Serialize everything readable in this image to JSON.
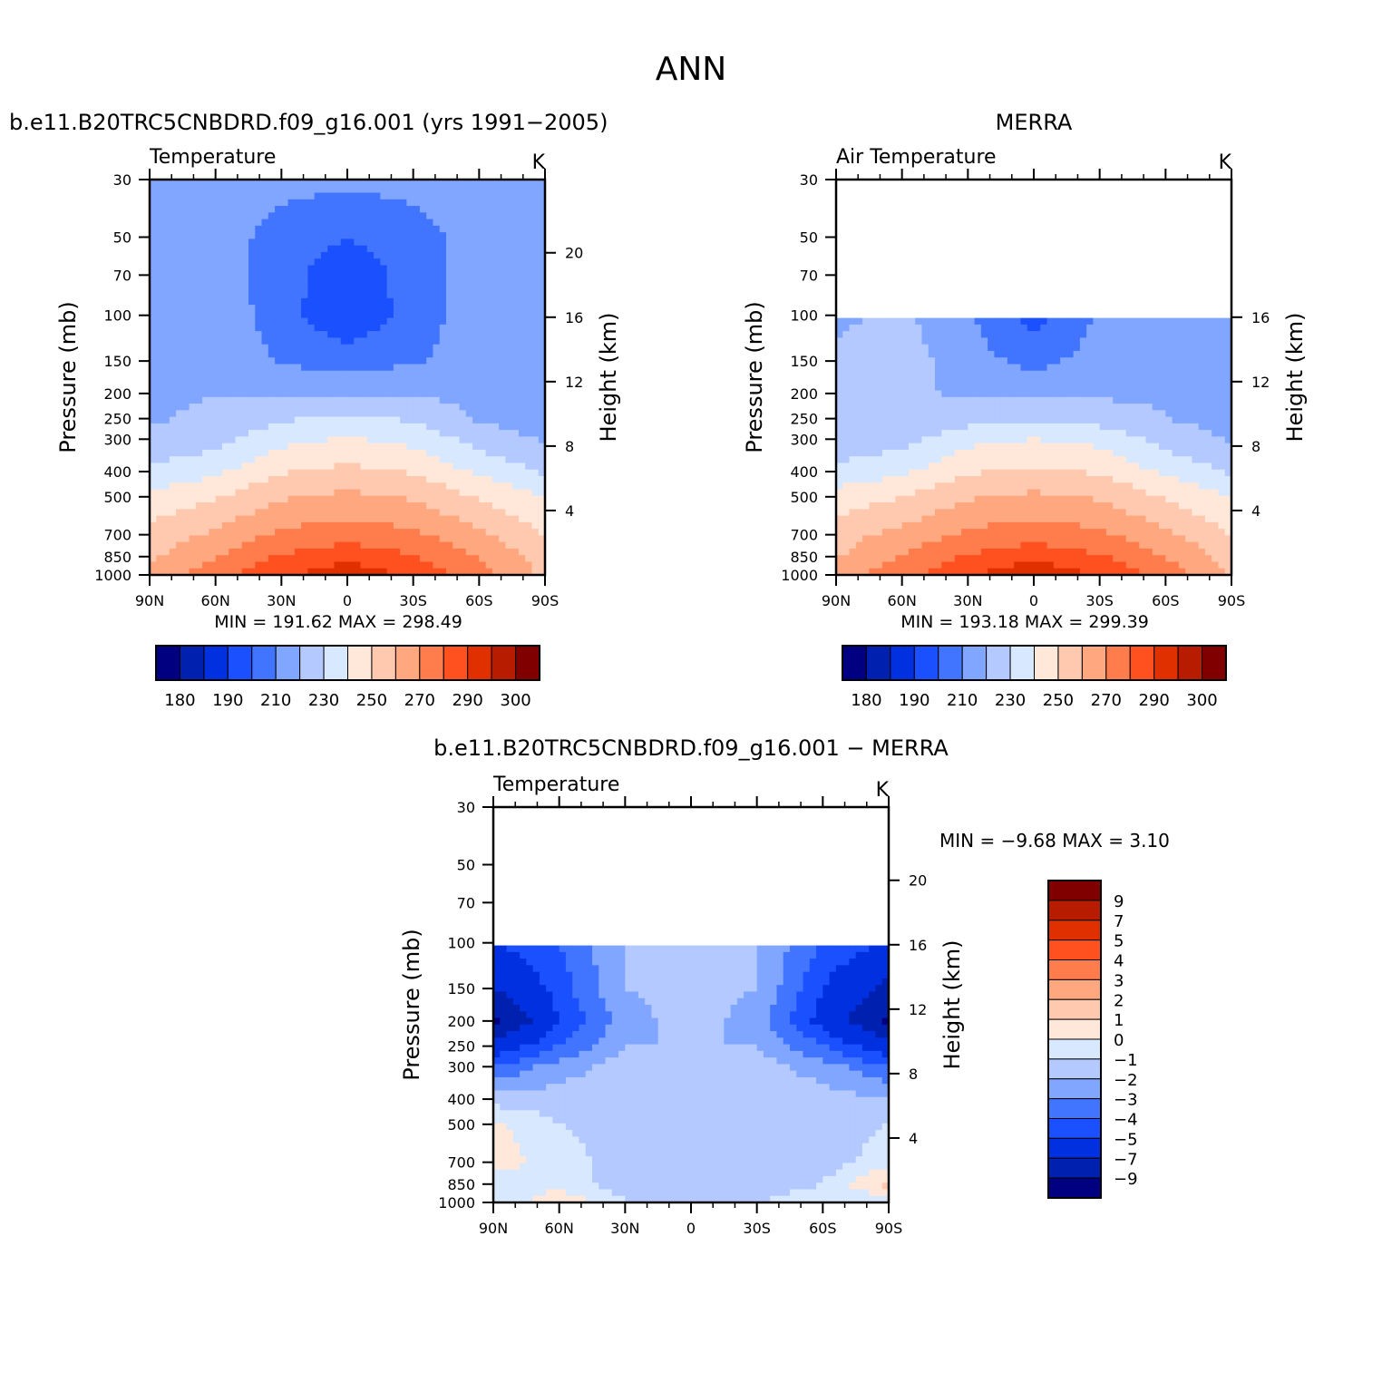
{
  "figure": {
    "title": "ANN",
    "case_name": "b.e11.B20TRC5CNBDRD.f09_g16.001 (yrs 1991−2005)",
    "obs_name": "MERRA",
    "diff_title": "b.e11.B20TRC5CNBDRD.f09_g16.001 − MERRA"
  },
  "chart_data": [
    {
      "type": "heatmap",
      "panel": "model",
      "title": "b.e11.B20TRC5CNBDRD.f09_g16.001 (yrs 1991−2005)",
      "subtitle": "Temperature",
      "units": "K",
      "xlabel": "",
      "ylabel": "Pressure (mb)",
      "ylabel_right": "Height (km)",
      "x_ticks": [
        "90N",
        "60N",
        "30N",
        "0",
        "30S",
        "60S",
        "90S"
      ],
      "y_ticks": [
        30,
        50,
        70,
        100,
        150,
        200,
        250,
        300,
        400,
        500,
        700,
        850,
        1000
      ],
      "y_scale": "log",
      "ylim": [
        1000,
        30
      ],
      "height_ticks_km": [
        4,
        8,
        12,
        16,
        20
      ],
      "stats": "MIN =  191.62   MAX =  298.49",
      "colorbar_labels": [
        "180",
        "190",
        "210",
        "230",
        "250",
        "270",
        "290",
        "300"
      ],
      "contour_levels": [
        180,
        190,
        200,
        210,
        220,
        230,
        240,
        250,
        260,
        270,
        280,
        290,
        300
      ],
      "lat_values": [
        90,
        60,
        30,
        0,
        -30,
        -60,
        -90
      ],
      "field": {
        "lat": [
          90,
          60,
          30,
          0,
          -30,
          -60,
          -90
        ],
        "pressure": [
          30,
          50,
          70,
          100,
          150,
          200,
          250,
          300,
          400,
          500,
          700,
          850,
          1000
        ],
        "values": [
          [
            215,
            218,
            214,
            212,
            214,
            217,
            212
          ],
          [
            212,
            216,
            205,
            200,
            205,
            215,
            210
          ],
          [
            216,
            217,
            203,
            195,
            203,
            216,
            212
          ],
          [
            218,
            218,
            204,
            192,
            204,
            216,
            211
          ],
          [
            218,
            219,
            209,
            205,
            209,
            215,
            211
          ],
          [
            218,
            220,
            219,
            218,
            219,
            217,
            212
          ],
          [
            219,
            222,
            229,
            231,
            229,
            219,
            213
          ],
          [
            222,
            226,
            237,
            241,
            237,
            226,
            219
          ],
          [
            232,
            238,
            249,
            253,
            249,
            238,
            229
          ],
          [
            243,
            249,
            259,
            262,
            259,
            249,
            240
          ],
          [
            254,
            262,
            272,
            276,
            272,
            262,
            250
          ],
          [
            258,
            270,
            281,
            286,
            281,
            269,
            256
          ],
          [
            262,
            276,
            288,
            298,
            288,
            274,
            258
          ]
        ]
      }
    },
    {
      "type": "heatmap",
      "panel": "obs",
      "title": "MERRA",
      "subtitle": "Air Temperature",
      "units": "K",
      "xlabel": "",
      "ylabel": "Pressure (mb)",
      "ylabel_right": "Height (km)",
      "x_ticks": [
        "90N",
        "60N",
        "30N",
        "0",
        "30S",
        "60S",
        "90S"
      ],
      "y_ticks": [
        30,
        50,
        70,
        100,
        150,
        200,
        250,
        300,
        400,
        500,
        700,
        850,
        1000
      ],
      "y_scale": "log",
      "ylim": [
        1000,
        30
      ],
      "height_ticks_km": [
        4,
        8,
        12,
        16
      ],
      "stats": "MIN =  193.18   MAX =  299.39",
      "colorbar_labels": [
        "180",
        "190",
        "210",
        "230",
        "250",
        "270",
        "290",
        "300"
      ],
      "contour_levels": [
        180,
        190,
        200,
        210,
        220,
        230,
        240,
        250,
        260,
        270,
        280,
        290,
        300
      ],
      "field": {
        "lat": [
          90,
          60,
          30,
          0,
          -30,
          -60,
          -90
        ],
        "pressure": [
          100,
          150,
          200,
          250,
          300,
          400,
          500,
          700,
          850,
          1000
        ],
        "values": [
          [
            218,
            222,
            212,
            195,
            212,
            218,
            214
          ],
          [
            222,
            225,
            214,
            207,
            214,
            219,
            215
          ],
          [
            222,
            223,
            218,
            217,
            218,
            219,
            216
          ],
          [
            220,
            222,
            226,
            228,
            226,
            220,
            216
          ],
          [
            223,
            226,
            237,
            240,
            237,
            226,
            219
          ],
          [
            233,
            238,
            249,
            252,
            249,
            238,
            229
          ],
          [
            244,
            250,
            259,
            262,
            259,
            249,
            240
          ],
          [
            256,
            263,
            272,
            276,
            272,
            262,
            250
          ],
          [
            259,
            271,
            281,
            286,
            281,
            270,
            256
          ],
          [
            264,
            277,
            289,
            299,
            289,
            275,
            259
          ]
        ]
      }
    },
    {
      "type": "heatmap",
      "panel": "difference",
      "title": "b.e11.B20TRC5CNBDRD.f09_g16.001 − MERRA",
      "subtitle": "Temperature",
      "units": "K",
      "xlabel": "",
      "ylabel": "Pressure (mb)",
      "ylabel_right": "Height (km)",
      "x_ticks": [
        "90N",
        "60N",
        "30N",
        "0",
        "30S",
        "60S",
        "90S"
      ],
      "y_ticks": [
        30,
        50,
        70,
        100,
        150,
        200,
        250,
        300,
        400,
        500,
        700,
        850,
        1000
      ],
      "y_scale": "log",
      "ylim": [
        1000,
        30
      ],
      "height_ticks_km": [
        4,
        8,
        12,
        16,
        20
      ],
      "stats": "MIN =    −9.68   MAX =     3.10",
      "colorbar_labels": [
        "9",
        "7",
        "5",
        "4",
        "3",
        "2",
        "1",
        "0",
        "−1",
        "−2",
        "−3",
        "−4",
        "−5",
        "−7",
        "−9"
      ],
      "contour_levels": [
        -9,
        -7,
        -5,
        -4,
        -3,
        -2,
        -1,
        0,
        1,
        2,
        3,
        4,
        5,
        7,
        9
      ],
      "field": {
        "lat": [
          90,
          60,
          30,
          0,
          -30,
          -60,
          -90
        ],
        "pressure": [
          100,
          150,
          200,
          250,
          300,
          400,
          500,
          700,
          850,
          1000
        ],
        "values": [
          [
            -5,
            -4,
            -2,
            -1,
            -2,
            -4,
            -5
          ],
          [
            -7,
            -4.5,
            -2,
            -1.5,
            -2,
            -5,
            -7.5
          ],
          [
            -9.5,
            -5,
            -2.5,
            -1.5,
            -2.5,
            -5.5,
            -9.5
          ],
          [
            -6,
            -4,
            -2,
            -2,
            -2,
            -4,
            -6
          ],
          [
            -4,
            -2.5,
            -1.5,
            -1.5,
            -1.5,
            -2.5,
            -4
          ],
          [
            -1.5,
            -1.5,
            -1.5,
            -1.5,
            -1.5,
            -1.5,
            -2
          ],
          [
            0.3,
            -1,
            -1.5,
            -1.5,
            -1.5,
            -1.5,
            -1
          ],
          [
            0.5,
            -0.5,
            -1.5,
            -1.5,
            -1.5,
            -1.5,
            -0.5
          ],
          [
            -0.5,
            -0.5,
            -1.5,
            -1.5,
            -1.5,
            -1,
            1.5
          ],
          [
            -1,
            1,
            -1,
            -1,
            -1,
            -0.5,
            -1
          ]
        ]
      }
    }
  ],
  "colors": {
    "abs_palette": [
      "#000080",
      "#0020b0",
      "#0030e0",
      "#1a50ff",
      "#4275ff",
      "#80a6ff",
      "#b3c9ff",
      "#d7e8ff",
      "#ffe8d9",
      "#ffc9b0",
      "#ffa880",
      "#ff7d4d",
      "#ff5020",
      "#e03000",
      "#b81c00",
      "#800000"
    ],
    "diff_palette": [
      "#800000",
      "#b81c00",
      "#e03000",
      "#ff5020",
      "#ff7d4d",
      "#ffa880",
      "#ffc9b0",
      "#ffe8d9",
      "#d7e8ff",
      "#b3c9ff",
      "#80a6ff",
      "#4275ff",
      "#1a50ff",
      "#0030e0",
      "#0020b0",
      "#000080"
    ]
  }
}
